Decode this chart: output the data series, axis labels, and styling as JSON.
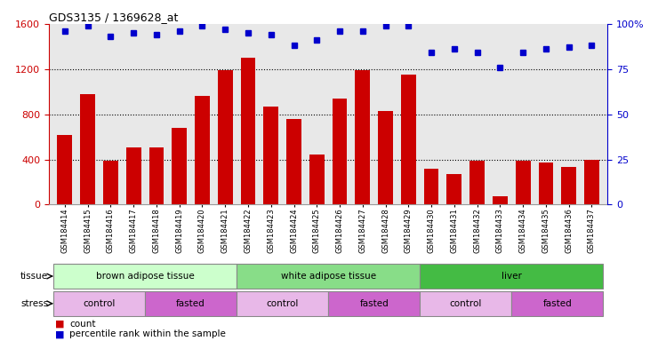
{
  "title": "GDS3135 / 1369628_at",
  "samples": [
    "GSM184414",
    "GSM184415",
    "GSM184416",
    "GSM184417",
    "GSM184418",
    "GSM184419",
    "GSM184420",
    "GSM184421",
    "GSM184422",
    "GSM184423",
    "GSM184424",
    "GSM184425",
    "GSM184426",
    "GSM184427",
    "GSM184428",
    "GSM184429",
    "GSM184430",
    "GSM184431",
    "GSM184432",
    "GSM184433",
    "GSM184434",
    "GSM184435",
    "GSM184436",
    "GSM184437"
  ],
  "counts": [
    620,
    980,
    390,
    510,
    510,
    680,
    960,
    1190,
    1300,
    870,
    760,
    440,
    940,
    1190,
    830,
    1150,
    320,
    270,
    390,
    70,
    390,
    370,
    330,
    400
  ],
  "percentiles": [
    96,
    99,
    93,
    95,
    94,
    96,
    99,
    97,
    95,
    94,
    88,
    91,
    96,
    96,
    99,
    99,
    84,
    86,
    84,
    76,
    84,
    86,
    87,
    88
  ],
  "ylim_left": [
    0,
    1600
  ],
  "ylim_right": [
    0,
    100
  ],
  "yticks_left": [
    0,
    400,
    800,
    1200,
    1600
  ],
  "yticks_right": [
    0,
    25,
    50,
    75,
    100
  ],
  "bar_color": "#cc0000",
  "dot_color": "#0000cc",
  "tissue_groups": [
    {
      "label": "brown adipose tissue",
      "start": 0,
      "end": 8,
      "color": "#ccffcc"
    },
    {
      "label": "white adipose tissue",
      "start": 8,
      "end": 16,
      "color": "#88dd88"
    },
    {
      "label": "liver",
      "start": 16,
      "end": 24,
      "color": "#44bb44"
    }
  ],
  "stress_groups": [
    {
      "label": "control",
      "start": 0,
      "end": 4,
      "color": "#e8b8e8"
    },
    {
      "label": "fasted",
      "start": 4,
      "end": 8,
      "color": "#cc66cc"
    },
    {
      "label": "control",
      "start": 8,
      "end": 12,
      "color": "#e8b8e8"
    },
    {
      "label": "fasted",
      "start": 12,
      "end": 16,
      "color": "#cc66cc"
    },
    {
      "label": "control",
      "start": 16,
      "end": 20,
      "color": "#e8b8e8"
    },
    {
      "label": "fasted",
      "start": 20,
      "end": 24,
      "color": "#cc66cc"
    }
  ],
  "plot_bg": "#e8e8e8",
  "grid_color": "#000000",
  "bar_color_hex": "#cc0000",
  "dot_color_hex": "#0000cc"
}
